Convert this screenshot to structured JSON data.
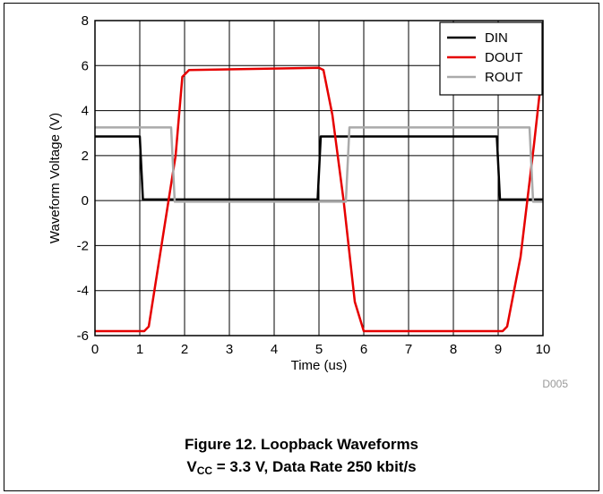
{
  "chart_data": {
    "type": "line",
    "xlabel": "Time (us)",
    "ylabel": "Waveform Voltage (V)",
    "xlim": [
      0,
      10
    ],
    "ylim": [
      -6,
      8
    ],
    "xticks": [
      "0",
      "1",
      "2",
      "3",
      "4",
      "5",
      "6",
      "7",
      "8",
      "9",
      "10"
    ],
    "yticks": [
      "-6",
      "-4",
      "-2",
      "0",
      "2",
      "4",
      "6",
      "8"
    ],
    "grid": true,
    "legend_position": "top-right",
    "code": "D005",
    "series": [
      {
        "name": "DIN",
        "color": "#000000",
        "x": [
          0,
          1.0,
          1.07,
          4.97,
          5.04,
          8.97,
          9.04,
          10
        ],
        "y": [
          2.85,
          2.85,
          0.05,
          0.05,
          2.85,
          2.85,
          0.05,
          0.05
        ]
      },
      {
        "name": "DOUT",
        "color": "#e60000",
        "x": [
          0,
          1.1,
          1.2,
          1.8,
          1.95,
          2.1,
          5.0,
          5.1,
          5.3,
          5.55,
          5.8,
          6.0,
          9.1,
          9.2,
          9.5,
          9.8,
          9.95
        ],
        "y": [
          -5.8,
          -5.8,
          -5.6,
          2.0,
          5.5,
          5.8,
          5.9,
          5.8,
          3.8,
          0.0,
          -4.5,
          -5.8,
          -5.8,
          -5.6,
          -2.5,
          2.5,
          5.2
        ]
      },
      {
        "name": "ROUT",
        "color": "#aaaaaa",
        "x": [
          0,
          1.7,
          1.78,
          5.6,
          5.68,
          9.7,
          9.78,
          10
        ],
        "y": [
          3.25,
          3.25,
          -0.05,
          -0.05,
          3.25,
          3.25,
          -0.05,
          -0.05
        ]
      }
    ]
  },
  "caption": {
    "line1": "Figure 12. Loopback Waveforms",
    "v": "V",
    "sub": "CC",
    "rest": " = 3.3 V, Data Rate 250 kbit/s"
  }
}
